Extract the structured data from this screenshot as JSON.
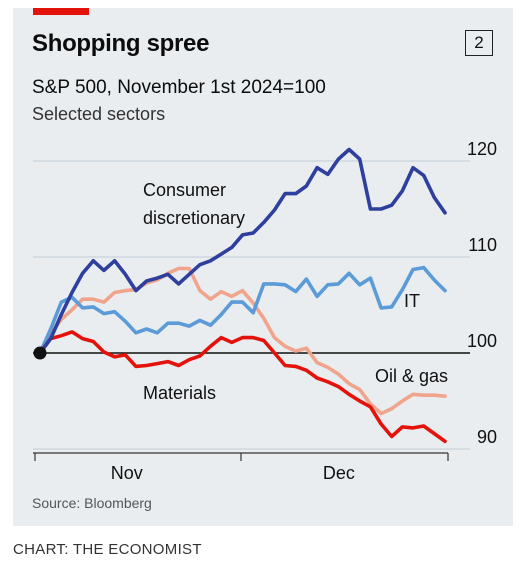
{
  "header": {
    "title": "Shopping spree",
    "chart_number": "2",
    "subtitle": "S&P 500, November 1st 2024=100",
    "subtitle2": "Selected sectors"
  },
  "footer": {
    "source": "Source: Bloomberg",
    "credit": "CHART: THE ECONOMIST"
  },
  "colors": {
    "consumer_discretionary": "#2e3f9e",
    "it": "#5b9bd8",
    "oil_gas": "#f0a48c",
    "materials": "#e3120b",
    "background": "#e9edf0",
    "brand_red": "#e3120b"
  },
  "chart_data": {
    "type": "line",
    "x_range": [
      0,
      42
    ],
    "x_ticks": [
      {
        "x": 9,
        "label": "Nov"
      },
      {
        "x": 31,
        "label": "Dec"
      }
    ],
    "ylim": [
      88,
      123
    ],
    "y_ticks": [
      {
        "value": 90,
        "label": "90"
      },
      {
        "value": 100,
        "label": "100"
      },
      {
        "value": 110,
        "label": "110"
      },
      {
        "value": 120,
        "label": "120"
      }
    ],
    "baseline": 100,
    "series": [
      {
        "name": "Consumer discretionary",
        "label_lines": [
          "Consumer",
          "discretionary"
        ],
        "color_key": "consumer_discretionary",
        "values": [
          100,
          101.5,
          104,
          106.3,
          108.3,
          109.6,
          108.6,
          109.6,
          108.2,
          106.5,
          107.5,
          107.8,
          108.2,
          107.2,
          108.2,
          109.2,
          109.6,
          110.3,
          111,
          112.3,
          112.5,
          113.6,
          114.9,
          116.6,
          116.6,
          117.4,
          119.3,
          118.6,
          120.2,
          121.2,
          120.2,
          115,
          115,
          115.4,
          116.9,
          119.3,
          118.5,
          116.2,
          114.6
        ]
      },
      {
        "name": "IT",
        "label_lines": [
          "IT"
        ],
        "color_key": "it",
        "values": [
          100,
          102.5,
          105.3,
          105.8,
          104.7,
          104.8,
          104.1,
          104.3,
          103.3,
          102.1,
          102.5,
          102.1,
          103.1,
          103.1,
          102.8,
          103.4,
          102.9,
          104,
          105.3,
          105.3,
          104.2,
          107.2,
          107.2,
          107.1,
          106.4,
          107.7,
          105.9,
          107.1,
          107.2,
          108.3,
          107.1,
          107.8,
          104.7,
          104.8,
          106.6,
          108.7,
          108.9,
          107.6,
          106.5
        ]
      },
      {
        "name": "Oil & gas",
        "label_lines": [
          "Oil & gas"
        ],
        "color_key": "oil_gas",
        "values": [
          100,
          102,
          103.5,
          104.5,
          105.6,
          105.6,
          105.3,
          106.3,
          106.5,
          106.6,
          107.3,
          107.6,
          108.3,
          108.8,
          108.8,
          106.5,
          105.6,
          106.4,
          105.9,
          106.5,
          105.2,
          103.6,
          101.6,
          100.7,
          100.2,
          100.5,
          99,
          98.5,
          97.8,
          96.8,
          96.2,
          94.7,
          93.7,
          94.2,
          95,
          95.7,
          95.6,
          95.6,
          95.5
        ]
      },
      {
        "name": "Materials",
        "label_lines": [
          "Materials"
        ],
        "color_key": "materials",
        "values": [
          100,
          101.5,
          101.8,
          102.2,
          101.5,
          101.2,
          100.1,
          99.6,
          99.8,
          98.6,
          98.7,
          98.9,
          99.1,
          98.7,
          99.3,
          99.7,
          100.7,
          101.6,
          101.1,
          101.6,
          101.6,
          101.3,
          100,
          98.7,
          98.6,
          98.2,
          97.4,
          97,
          96.5,
          95.7,
          95,
          94.4,
          92.6,
          91.3,
          92.3,
          92.2,
          92.4,
          91.6,
          90.8
        ]
      }
    ]
  }
}
